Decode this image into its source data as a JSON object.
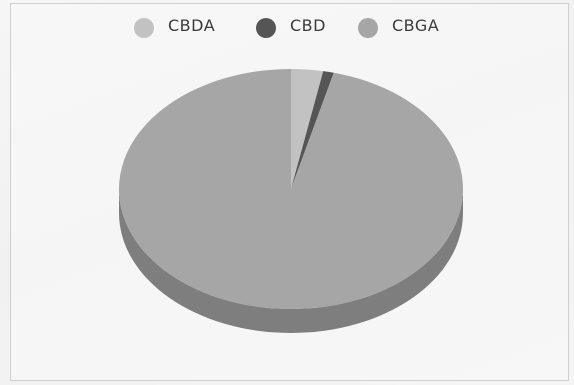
{
  "chart_data": {
    "type": "pie",
    "style": "3d",
    "title": "",
    "legend_position": "top",
    "series": [
      {
        "name": "CBDA",
        "value": 3.0,
        "color": "#c2c2c2"
      },
      {
        "name": "CBD",
        "value": 1.0,
        "color": "#555555"
      },
      {
        "name": "CBGA",
        "value": 96.0,
        "color": "#a6a6a6"
      }
    ]
  },
  "colors": {
    "cbga_side": "#7e7e7e",
    "cbda_side": "#9a9a9a",
    "cbd_side": "#3d3d3d"
  }
}
